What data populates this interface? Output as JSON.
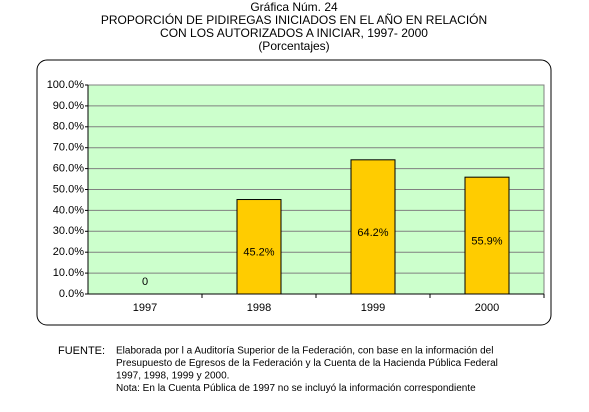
{
  "chart_data": {
    "type": "bar",
    "title_lines": [
      "Gráfica Núm. 24",
      "PROPORCIÓN DE PIDIREGAS INICIADOS EN EL AÑO EN RELACIÓN",
      "CON LOS AUTORIZADOS A INICIAR, 1997- 2000",
      "(Porcentajes)"
    ],
    "categories": [
      "1997",
      "1998",
      "1999",
      "2000"
    ],
    "values": [
      0,
      45.2,
      64.2,
      55.9
    ],
    "value_labels": [
      "0",
      "45.2%",
      "64.2%",
      "55.9%"
    ],
    "color": "#ffcc00",
    "ylim": [
      0,
      100
    ],
    "yticks": [
      {
        "value": 0,
        "label": "0.0%"
      },
      {
        "value": 10,
        "label": "10.0%"
      },
      {
        "value": 20,
        "label": "20.0%"
      },
      {
        "value": 30,
        "label": "30.0%"
      },
      {
        "value": 40,
        "label": "40.0%"
      },
      {
        "value": 50,
        "label": "50.0%"
      },
      {
        "value": 60,
        "label": "60.0%"
      },
      {
        "value": 70,
        "label": "70.0%"
      },
      {
        "value": 80,
        "label": "80.0%"
      },
      {
        "value": 90,
        "label": "90.0%"
      },
      {
        "value": 100,
        "label": "100.0%"
      }
    ],
    "grid": true,
    "footnote": {
      "label": "FUENTE:",
      "lines": [
        "Elaborada por l   a Auditoría Superior de la Federación, con base en la información del",
        "Presupuesto de Egresos de la Federación y la Cuenta de la Hacienda Pública Federal",
        "1997, 1998, 1999 y 2000.",
        "Nota: En la Cuenta Pública de 1997 no se incluyó la información correspondiente"
      ]
    }
  }
}
